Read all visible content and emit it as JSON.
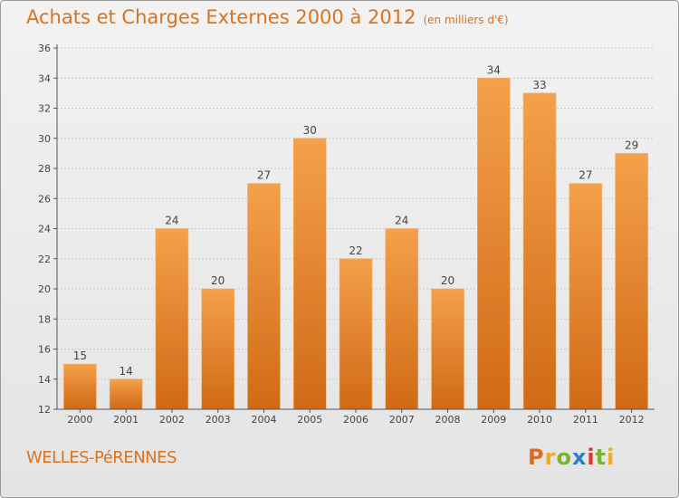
{
  "header": {
    "title": "Achats et Charges Externes 2000 à 2012",
    "unit": "(en milliers d'€)"
  },
  "footer": {
    "commune": "WELLES-PéRENNES",
    "brand_letters": [
      "P",
      "r",
      "o",
      "x",
      "i",
      "t",
      "i"
    ]
  },
  "colors": {
    "accent": "#d9731f",
    "bar_top": "#f5a04a",
    "bar_bottom": "#d06a16"
  },
  "chart_data": {
    "type": "bar",
    "title": "Achats et Charges Externes 2000 à 2012",
    "subtitle": "(en milliers d'€)",
    "xlabel": "",
    "ylabel": "",
    "categories": [
      "2000",
      "2001",
      "2002",
      "2003",
      "2004",
      "2005",
      "2006",
      "2007",
      "2008",
      "2009",
      "2010",
      "2011",
      "2012"
    ],
    "values": [
      15,
      14,
      24,
      20,
      27,
      30,
      22,
      24,
      20,
      34,
      33,
      27,
      29
    ],
    "ylim": [
      12,
      36
    ],
    "yticks": [
      12,
      14,
      16,
      18,
      20,
      22,
      24,
      26,
      28,
      30,
      32,
      34,
      36
    ],
    "grid": true,
    "legend": "none"
  }
}
